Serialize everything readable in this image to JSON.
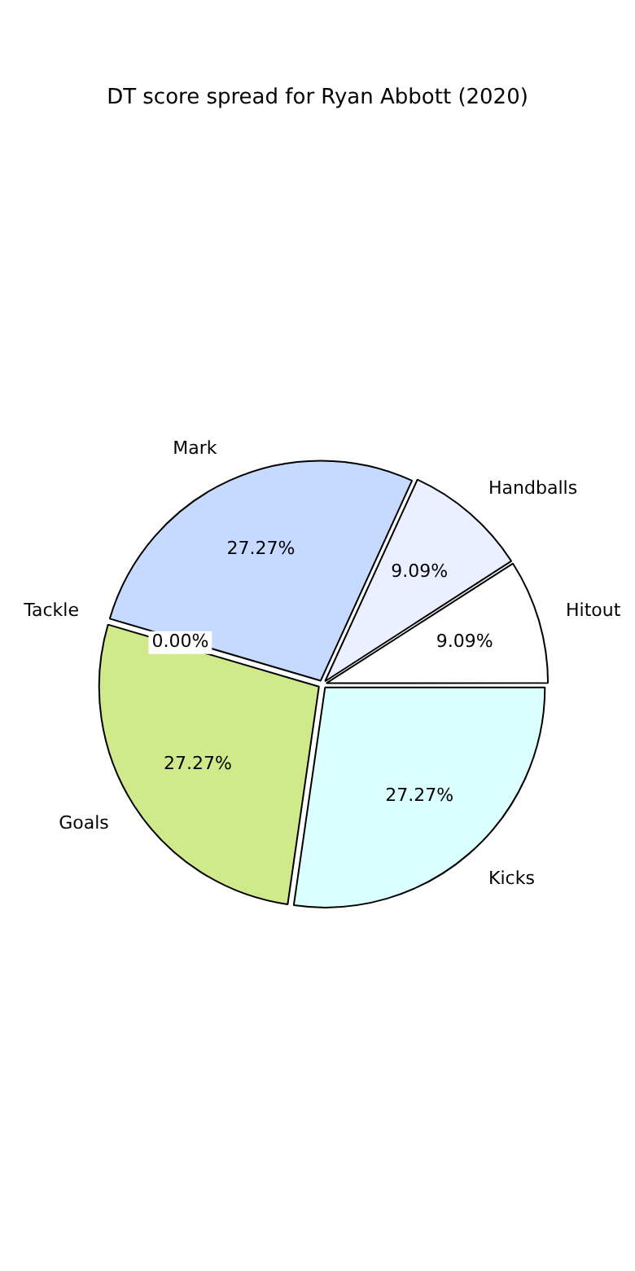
{
  "chart_data": {
    "type": "pie",
    "title": "DT score spread for Ryan Abbott (2020)",
    "categories": [
      "Hitout",
      "Handballs",
      "Mark",
      "Tackle",
      "Goals",
      "Kicks"
    ],
    "values": [
      9.09,
      9.09,
      27.27,
      0,
      27.27,
      27.27
    ],
    "value_labels": [
      "9.09%",
      "9.09%",
      "27.27%",
      "0.00%",
      "27.27%",
      "27.27%"
    ],
    "colors": [
      "#ffffff",
      "#eaf0ff",
      "#c6d9ff",
      "#ffffff",
      "#d0e98a",
      "#dbffff"
    ]
  }
}
